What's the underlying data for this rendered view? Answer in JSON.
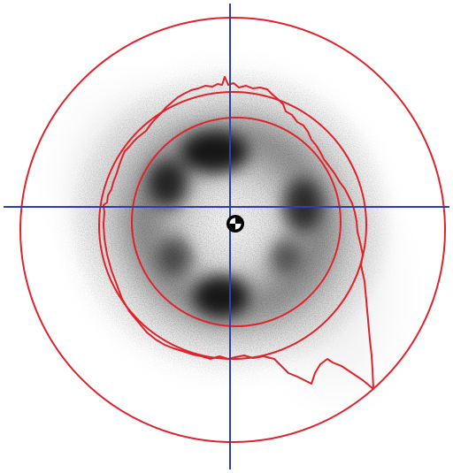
{
  "image": {
    "description_tags": [
      "beam-profile",
      "intensity-map",
      "crosshair",
      "contour",
      "reference-circles"
    ],
    "colors": {
      "background": "#ffffff",
      "intensity": "#000000",
      "crosshair": "#2b3fb3",
      "contour": "#e0222b",
      "circles": "#e0222b",
      "centroid_fill": "#ffffff",
      "centroid_dark": "#000000"
    },
    "elements": {
      "crosshair": true,
      "reference_circle_count": 3,
      "irregular_contour": true,
      "centroid_marker": true,
      "hotspot_lobe_count": 6
    }
  }
}
